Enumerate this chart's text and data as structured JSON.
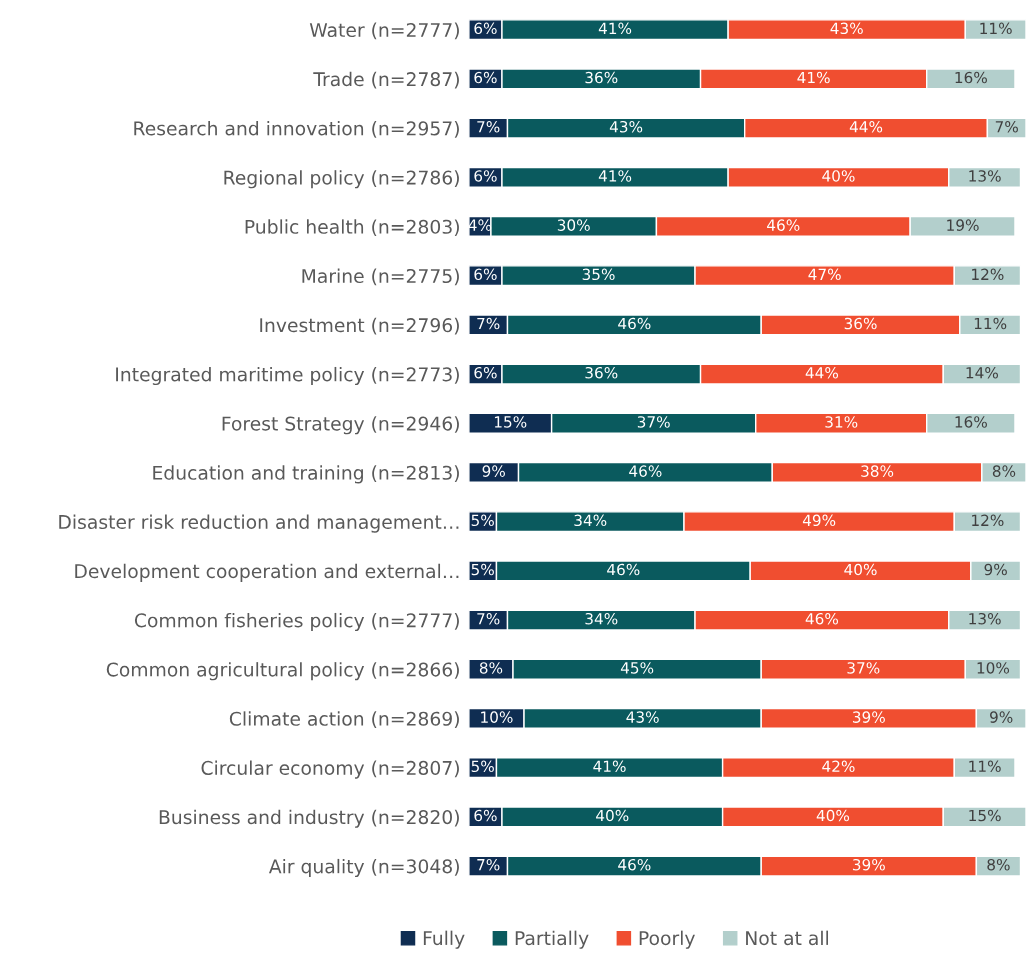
{
  "chart_data": {
    "type": "bar",
    "orientation": "horizontal",
    "stacked": true,
    "legend": "bottom",
    "grid": false,
    "categories": [
      "Water (n=2777)",
      "Trade (n=2787)",
      "Research and innovation (n=2957)",
      "Regional policy (n=2786)",
      "Public health (n=2803)",
      "Marine (n=2775)",
      "Investment (n=2796)",
      "Integrated maritime policy (n=2773)",
      "Forest Strategy (n=2946)",
      "Education and training (n=2813)",
      "Disaster risk reduction and management…",
      "Development cooperation and external…",
      "Common fisheries policy (n=2777)",
      "Common agricultural policy (n=2866)",
      "Climate action (n=2869)",
      "Circular economy (n=2807)",
      "Business and industry (n=2820)",
      "Air quality (n=3048)"
    ],
    "series": [
      {
        "name": "Fully",
        "color": "#0f2d52",
        "values": [
          6,
          6,
          7,
          6,
          4,
          6,
          7,
          6,
          15,
          9,
          5,
          5,
          7,
          8,
          10,
          5,
          6,
          7
        ],
        "value_labels": [
          "6%",
          "6%",
          "7%",
          "6%",
          "4%",
          "6%",
          "7%",
          "6%",
          "15%",
          "9%",
          "5%",
          "5%",
          "7%",
          "8%",
          "10%",
          "5%",
          "6%",
          "7%"
        ]
      },
      {
        "name": "Partially",
        "color": "#0a5a5e",
        "values": [
          41,
          36,
          43,
          41,
          30,
          35,
          46,
          36,
          37,
          46,
          34,
          46,
          34,
          45,
          43,
          41,
          40,
          46
        ],
        "value_labels": [
          "41%",
          "36%",
          "43%",
          "41%",
          "30%",
          "35%",
          "46%",
          "36%",
          "37%",
          "46%",
          "34%",
          "46%",
          "34%",
          "45%",
          "43%",
          "41%",
          "40%",
          "46%"
        ]
      },
      {
        "name": "Poorly",
        "color": "#f04e30",
        "values": [
          43,
          41,
          44,
          40,
          46,
          47,
          36,
          44,
          31,
          38,
          49,
          40,
          46,
          37,
          39,
          42,
          40,
          39
        ],
        "value_labels": [
          "43%",
          "41%",
          "44%",
          "40%",
          "46%",
          "47%",
          "36%",
          "44%",
          "31%",
          "38%",
          "49%",
          "40%",
          "46%",
          "37%",
          "39%",
          "42%",
          "40%",
          "39%"
        ]
      },
      {
        "name": "Not at all",
        "color": "#b3cfcc",
        "values": [
          11,
          16,
          7,
          13,
          19,
          12,
          11,
          14,
          16,
          8,
          12,
          9,
          13,
          10,
          9,
          11,
          15,
          8
        ],
        "value_labels": [
          "11%",
          "16%",
          "7%",
          "13%",
          "19%",
          "12%",
          "11%",
          "14%",
          "16%",
          "8%",
          "12%",
          "9%",
          "13%",
          "10%",
          "9%",
          "11%",
          "15%",
          "8%"
        ]
      }
    ]
  }
}
